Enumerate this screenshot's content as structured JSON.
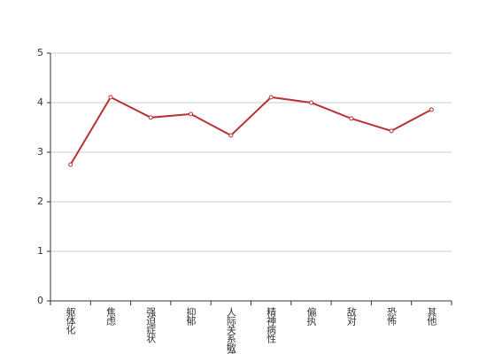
{
  "chart_data": {
    "type": "line",
    "categories": [
      "躯体化",
      "焦虑",
      "强迫症状",
      "抑郁",
      "人际关系敏感",
      "精神病性",
      "偏执",
      "敌对",
      "恐怖",
      "其他"
    ],
    "series": [
      {
        "color": "#b83232",
        "values": [
          2.75,
          4.11,
          3.7,
          3.77,
          3.34,
          4.11,
          4.0,
          3.68,
          3.43,
          3.86
        ]
      }
    ],
    "ylim": [
      0,
      5
    ],
    "yticks": [
      0,
      1,
      2,
      3,
      4,
      5
    ],
    "grid": true
  }
}
